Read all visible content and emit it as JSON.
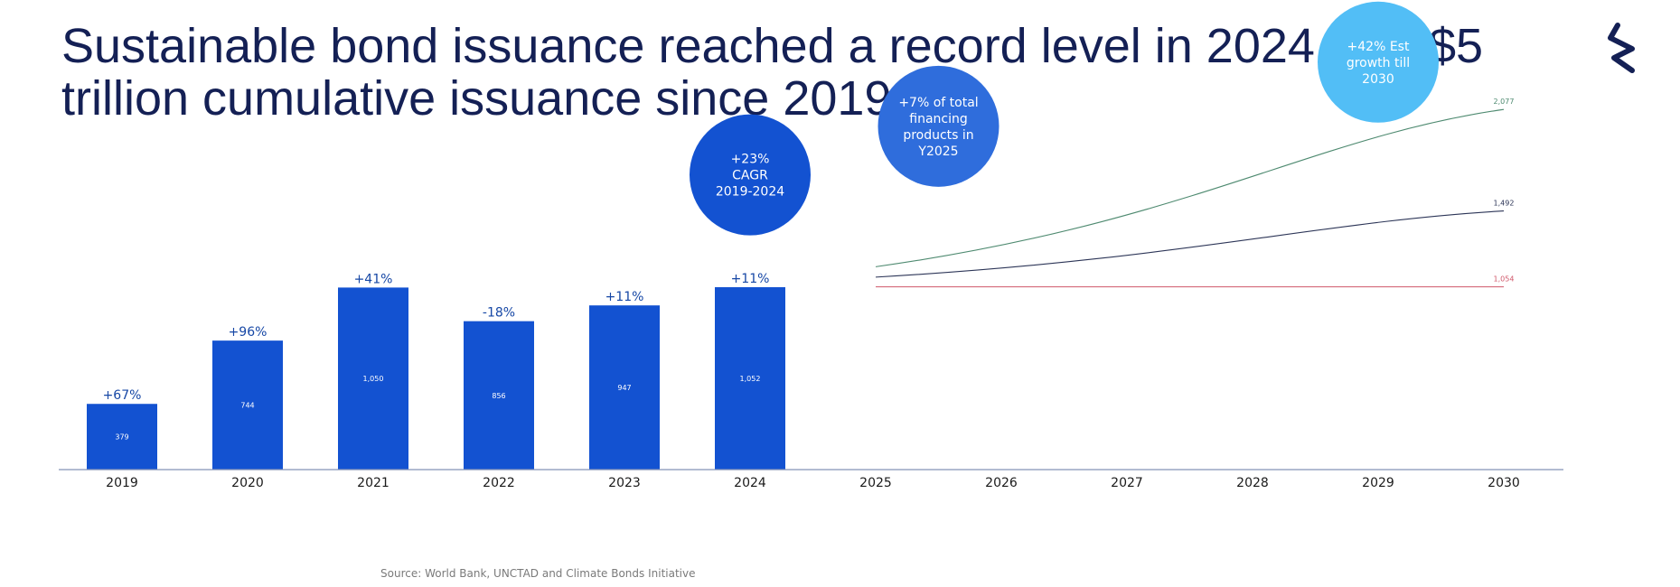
{
  "page": {
    "title": "Sustainable bond issuance reached a record level in 2024 with $5 trillion cumulative issuance since 2019",
    "source": "Source: World Bank, UNCTAD and Climate Bonds Initiative",
    "logo_icon": "stylized-s-logo-icon"
  },
  "colors": {
    "title": "#142055",
    "bar": "#1352D1",
    "growth_label": "#1647A5",
    "axis": "#8592B8",
    "bubble_1": "#1352D1",
    "bubble_2": "#2F6DDC",
    "bubble_3": "#52BEF6",
    "line_high": "#4E8A70",
    "line_mid": "#2C3557",
    "line_low": "#D0576A"
  },
  "chart_data": {
    "type": "bar",
    "categories": [
      "2019",
      "2020",
      "2021",
      "2022",
      "2023",
      "2024",
      "2025",
      "2026",
      "2027",
      "2028",
      "2029",
      "2030"
    ],
    "series": [
      {
        "type": "bar",
        "x": [
          "2019",
          "2020",
          "2021",
          "2022",
          "2023",
          "2024"
        ],
        "values": [
          379,
          744,
          1050,
          856,
          947,
          1052
        ],
        "value_labels": [
          "379",
          "744",
          "1,050",
          "856",
          "947",
          "1,052"
        ],
        "growth_labels": [
          "+67%",
          "+96%",
          "+41%",
          "-18%",
          "+11%",
          "+11%"
        ]
      },
      {
        "type": "line",
        "color": "#4E8A70",
        "x": [
          "2025",
          "2030"
        ],
        "values": [
          1170,
          2077
        ],
        "end_label": "2,077"
      },
      {
        "type": "line",
        "color": "#2C3557",
        "x": [
          "2025",
          "2030"
        ],
        "values": [
          1110,
          1492
        ],
        "end_label": "1,492"
      },
      {
        "type": "line",
        "color": "#D0576A",
        "x": [
          "2025",
          "2030"
        ],
        "values": [
          1054,
          1054
        ],
        "end_label": "1,054"
      }
    ],
    "annotations": [
      {
        "lines": [
          "+23%",
          "CAGR",
          "2019-2024"
        ],
        "color": "#1352D1",
        "x": "2024",
        "y": 1700
      },
      {
        "lines": [
          "+7% of total",
          "financing",
          "products in",
          "Y2025"
        ],
        "color": "#2F6DDC",
        "x": "2025.5",
        "y": 1980
      },
      {
        "lines": [
          "+42% Est",
          "growth till",
          "2030"
        ],
        "color": "#52BEF6",
        "x": "2029",
        "y": 2350
      }
    ],
    "ylim": [
      0,
      2500
    ],
    "grid": false,
    "legend": "none"
  }
}
